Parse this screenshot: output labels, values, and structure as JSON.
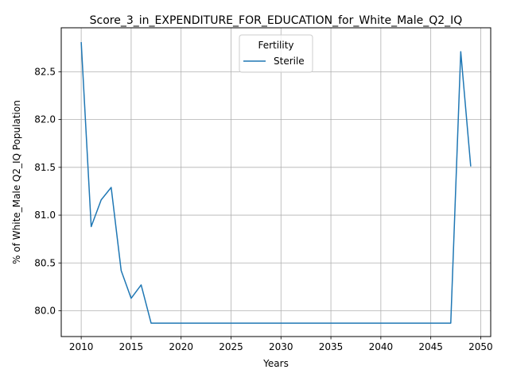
{
  "chart_data": {
    "type": "line",
    "title": "Score_3_in_EXPENDITURE_FOR_EDUCATION_for_White_Male_Q2_IQ",
    "xlabel": "Years",
    "ylabel": "% of White_Male Q2_IQ Population",
    "xlim": [
      2008.0,
      2051.0
    ],
    "ylim": [
      79.73,
      82.96
    ],
    "x_ticks": [
      2010,
      2015,
      2020,
      2025,
      2030,
      2035,
      2040,
      2045,
      2050
    ],
    "y_ticks": [
      80.0,
      80.5,
      81.0,
      81.5,
      82.0,
      82.5
    ],
    "y_tick_labels": [
      "80.0",
      "80.5",
      "81.0",
      "81.5",
      "82.0",
      "82.5"
    ],
    "grid": true,
    "legend": {
      "title": "Fertility",
      "placement": "top-center"
    },
    "series": [
      {
        "name": "Sterile",
        "color": "#1f77b4",
        "x": [
          2010,
          2011,
          2012,
          2013,
          2014,
          2015,
          2016,
          2017,
          2018,
          2019,
          2020,
          2021,
          2022,
          2023,
          2024,
          2025,
          2026,
          2027,
          2028,
          2029,
          2030,
          2031,
          2032,
          2033,
          2034,
          2035,
          2036,
          2037,
          2038,
          2039,
          2040,
          2041,
          2042,
          2043,
          2044,
          2045,
          2046,
          2047,
          2048,
          2049
        ],
        "y": [
          82.81,
          80.88,
          81.16,
          81.29,
          80.42,
          80.13,
          80.27,
          79.87,
          79.87,
          79.87,
          79.87,
          79.87,
          79.87,
          79.87,
          79.87,
          79.87,
          79.87,
          79.87,
          79.87,
          79.87,
          79.87,
          79.87,
          79.87,
          79.87,
          79.87,
          79.87,
          79.87,
          79.87,
          79.87,
          79.87,
          79.87,
          79.87,
          79.87,
          79.87,
          79.87,
          79.87,
          79.87,
          79.87,
          82.71,
          81.51
        ]
      }
    ]
  }
}
